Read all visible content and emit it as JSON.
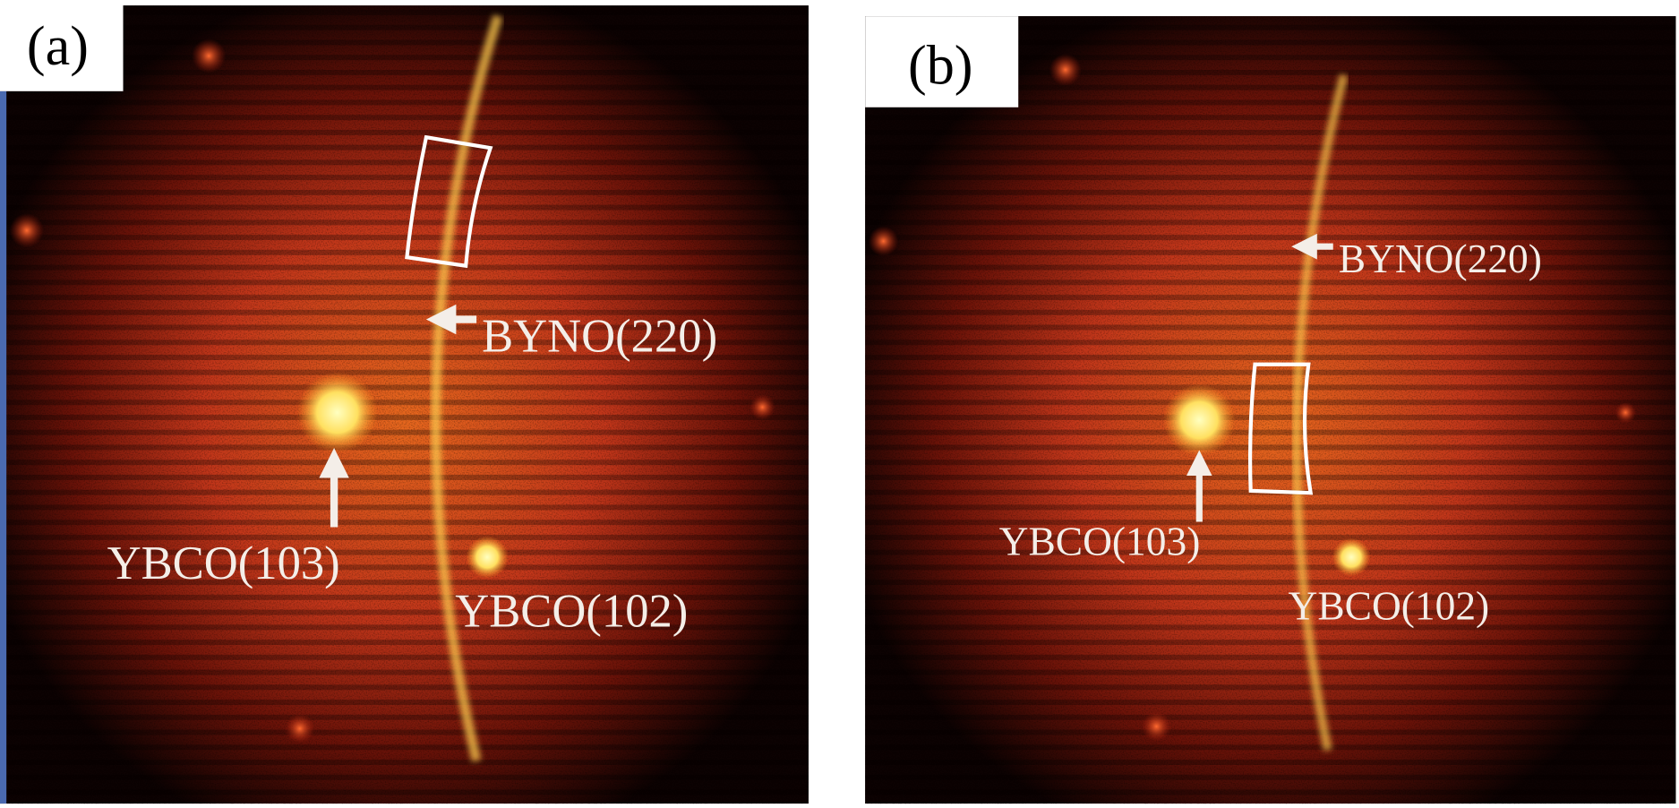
{
  "panels": [
    {
      "label": "(a)",
      "annotations": [
        "BYNO(220)",
        "YBCO(103)",
        "YBCO(102)"
      ]
    },
    {
      "label": "(b)",
      "annotations": [
        "BYNO(220)",
        "YBCO(103)",
        "YBCO(102)"
      ]
    }
  ]
}
